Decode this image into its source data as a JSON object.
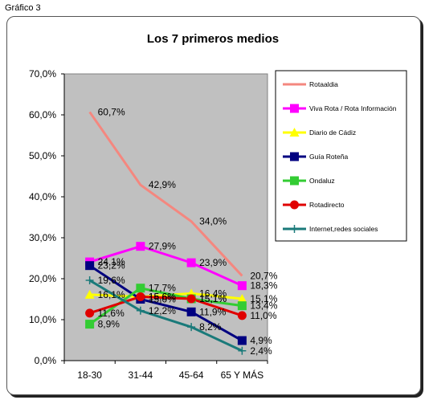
{
  "caption": "Gráfico 3",
  "chart_data": {
    "type": "line",
    "title": "Los 7 primeros medios",
    "xlabel": "",
    "ylabel": "",
    "categories": [
      "18-30",
      "31-44",
      "45-64",
      "65 Y MÁS"
    ],
    "ylim": [
      0,
      70
    ],
    "yticks": [
      "0,0%",
      "10,0%",
      "20,0%",
      "30,0%",
      "40,0%",
      "50,0%",
      "60,0%",
      "70,0%"
    ],
    "grid": false,
    "legend_position": "right",
    "series": [
      {
        "name": "Rotaaldia",
        "color": "#f4877f",
        "marker": "none",
        "values": [
          60.7,
          42.9,
          34.0,
          20.7
        ],
        "labels": [
          "60,7%",
          "42,9%",
          "34,0%",
          "20,7%"
        ]
      },
      {
        "name": "Viva Rota / Rota Información",
        "color": "#ff00ff",
        "marker": "square",
        "values": [
          24.1,
          27.9,
          23.9,
          18.3
        ],
        "labels": [
          "24,1%",
          "27,9%",
          "23,9%",
          "18,3%"
        ]
      },
      {
        "name": "Diario de Cádiz",
        "color": "#ffff00",
        "marker": "triangle",
        "values": [
          16.1,
          15.6,
          16.4,
          15.1
        ],
        "labels": [
          "16,1%",
          "15,6%",
          "16,4%",
          "15,1%"
        ]
      },
      {
        "name": "Guía Roteña",
        "color": "#000080",
        "marker": "square",
        "values": [
          23.2,
          15.0,
          11.9,
          4.9
        ],
        "labels": [
          "23,2%",
          "15,0%",
          "11,9%",
          "4,9%"
        ]
      },
      {
        "name": "Ondaluz",
        "color": "#33cc33",
        "marker": "square",
        "values": [
          8.9,
          17.7,
          15.1,
          13.4
        ],
        "labels": [
          "8,9%",
          "17,7%",
          "15,1%",
          "13,4%"
        ]
      },
      {
        "name": "Rotadirecto",
        "color": "#e00000",
        "marker": "circle",
        "values": [
          11.6,
          15.6,
          15.1,
          11.0
        ],
        "labels": [
          "11,6%",
          "15,6%",
          "15,1%",
          "11,0%"
        ]
      },
      {
        "name": "Internet,redes sociales",
        "color": "#1a7a7a",
        "marker": "plus",
        "values": [
          19.6,
          12.2,
          8.2,
          2.4
        ],
        "labels": [
          "19,6%",
          "12,2%",
          "8,2%",
          "2,4%"
        ]
      }
    ]
  }
}
